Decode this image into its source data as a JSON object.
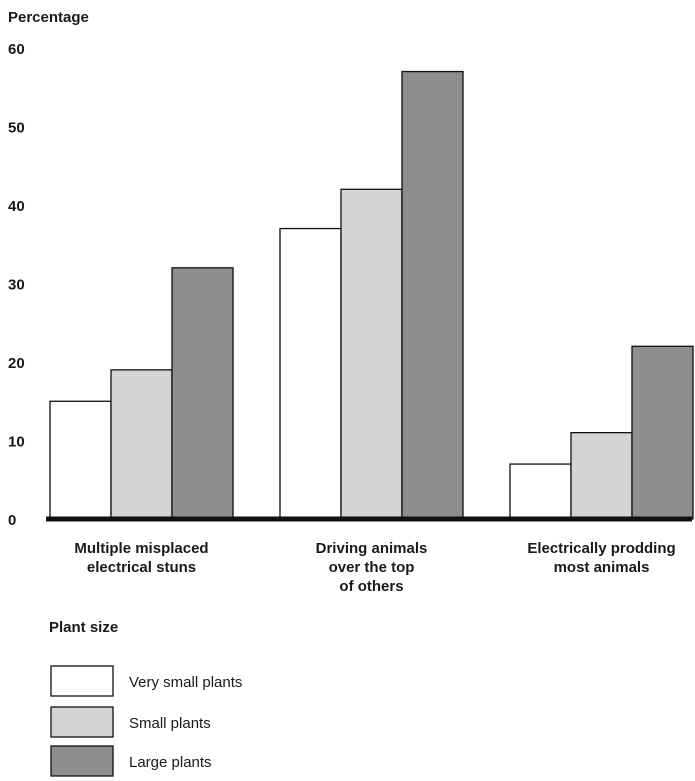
{
  "chart_data": {
    "type": "bar",
    "ylabel": "Percentage",
    "ylim": [
      0,
      60
    ],
    "yticks": [
      "0",
      "10",
      "20",
      "30",
      "40",
      "50",
      "60"
    ],
    "categories": [
      "Multiple misplaced electrical stuns",
      "Driving animals over the top of others",
      "Electrically prodding most animals"
    ],
    "category_lines": [
      [
        "Multiple misplaced",
        "electrical stuns"
      ],
      [
        "Driving animals",
        "over the top",
        "of others"
      ],
      [
        "Electrically prodding",
        "most animals"
      ]
    ],
    "legend_title": "Plant size",
    "legend_placement": "bottom-left",
    "grid": false,
    "series": [
      {
        "name": "Very small plants",
        "color": "#ffffff",
        "values": [
          15,
          37,
          7
        ]
      },
      {
        "name": "Small plants",
        "color": "#d4d4d4",
        "values": [
          19,
          42,
          11
        ]
      },
      {
        "name": "Large plants",
        "color": "#8e8e8e",
        "values": [
          32,
          57,
          22
        ]
      }
    ]
  }
}
